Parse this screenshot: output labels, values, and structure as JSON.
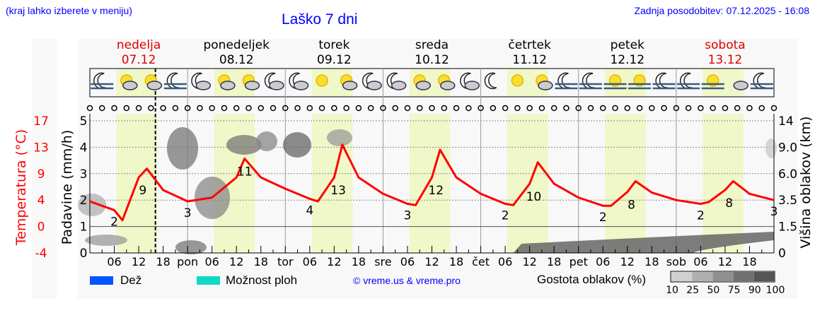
{
  "header": {
    "menu_note": "(kraj lahko izberete v meniju)",
    "title": "Laško 7 dni",
    "last_update": "Zadnja posodobitev: 07.12.2025 - 16:08"
  },
  "days": [
    {
      "name": "nedelja",
      "date": "07.12",
      "weekend": true
    },
    {
      "name": "ponedeljek",
      "date": "08.12",
      "weekend": false
    },
    {
      "name": "torek",
      "date": "09.12",
      "weekend": false
    },
    {
      "name": "sreda",
      "date": "10.12",
      "weekend": false
    },
    {
      "name": "četrtek",
      "date": "11.12",
      "weekend": false
    },
    {
      "name": "petek",
      "date": "12.12",
      "weekend": false
    },
    {
      "name": "sobota",
      "date": "13.12",
      "weekend": true
    }
  ],
  "axes": {
    "temperature_label": "Temperatura (°C)",
    "temperature_ticks": [
      "17",
      "13",
      "9",
      "4",
      "0",
      "-4"
    ],
    "precip_label": "Padavine (mm/h)",
    "precip_ticks": [
      "5",
      "4",
      "3",
      "2",
      "1",
      "0"
    ],
    "cloud_height_label": "Višina oblakov (km)",
    "cloud_height_ticks": [
      "14",
      "9.0",
      "6.0",
      "3.5",
      "1.5",
      "0"
    ],
    "x_ticks": [
      "06",
      "12",
      "18",
      "pon",
      "06",
      "12",
      "18",
      "tor",
      "06",
      "12",
      "18",
      "sre",
      "06",
      "12",
      "18",
      "čet",
      "06",
      "12",
      "18",
      "pet",
      "06",
      "12",
      "18",
      "sob",
      "06",
      "12",
      "18"
    ]
  },
  "weather_icons": [
    "fog-night",
    "sun-cloud",
    "cloud-sun",
    "fog-night",
    "moon-cloud",
    "cloud-sun",
    "cloud-sun",
    "moon-cloud",
    "moon-cloud",
    "sun",
    "sun-cloud",
    "moon-cloud",
    "moon-cloud",
    "sun-cloud",
    "sun-cloud",
    "moon-cloud",
    "moon",
    "sun",
    "sun-cloud",
    "fog-night",
    "fog-night",
    "fog-sun",
    "fog-sun",
    "fog-night",
    "fog-night",
    "fog-sun",
    "cloud",
    "fog-night"
  ],
  "legend": {
    "rain": "Dež",
    "rain_color": "#0055ff",
    "showers": "Možnost ploh",
    "showers_color": "#10d8c8",
    "copyright": "© vreme.us & vreme.pro",
    "cloud_density_label": "Gostota oblakov (%)",
    "cloud_density_ticks": [
      "10",
      "25",
      "50",
      "75",
      "90",
      "100"
    ],
    "cloud_density_colors": [
      "#d0d0d0",
      "#b0b0b0",
      "#909090",
      "#707070",
      "#555555"
    ]
  },
  "chart_data": {
    "type": "line",
    "title": "Laško 7 dni",
    "xlabel": "",
    "ylabel": "Temperatura (°C)",
    "ylim": [
      -4,
      17
    ],
    "x_unit": "hours since 07.12 00:00",
    "series": [
      {
        "name": "Temperatura",
        "color": "#ff0000",
        "x": [
          0,
          6,
          8,
          12,
          14,
          18,
          24,
          30,
          36,
          38,
          42,
          48,
          54,
          56,
          60,
          62,
          66,
          72,
          78,
          80,
          84,
          86,
          90,
          96,
          102,
          104,
          108,
          110,
          114,
          120,
          126,
          128,
          132,
          134,
          138,
          144,
          150,
          152,
          156,
          158,
          162,
          168
        ],
        "values": [
          4.2,
          2.8,
          1.2,
          8,
          9.4,
          6,
          4.2,
          4.8,
          8,
          11,
          8,
          6.2,
          4.6,
          4.2,
          8,
          13.2,
          8,
          5.4,
          3.8,
          3.6,
          8,
          12.4,
          8,
          5.4,
          3.8,
          3.6,
          7,
          10.4,
          7,
          4.8,
          3.5,
          3.5,
          5.7,
          7.4,
          5.6,
          4.4,
          3.8,
          4.1,
          6,
          7.4,
          5.4,
          4.4
        ]
      }
    ],
    "labels": [
      {
        "x": 6,
        "text": "2"
      },
      {
        "x": 13,
        "text": "9"
      },
      {
        "x": 24,
        "text": "3"
      },
      {
        "x": 38,
        "text": "11"
      },
      {
        "x": 54,
        "text": "4"
      },
      {
        "x": 61,
        "text": "13"
      },
      {
        "x": 78,
        "text": "3"
      },
      {
        "x": 85,
        "text": "12"
      },
      {
        "x": 102,
        "text": "2"
      },
      {
        "x": 109,
        "text": "10"
      },
      {
        "x": 126,
        "text": "2"
      },
      {
        "x": 133,
        "text": "8"
      },
      {
        "x": 150,
        "text": "2"
      },
      {
        "x": 157,
        "text": "8"
      },
      {
        "x": 168,
        "text": "3"
      }
    ],
    "precipitation": {
      "unit": "mm/h",
      "ylim": [
        0,
        5
      ],
      "values": "none"
    },
    "current_time_marker_hour": 16.1,
    "grid": true
  }
}
